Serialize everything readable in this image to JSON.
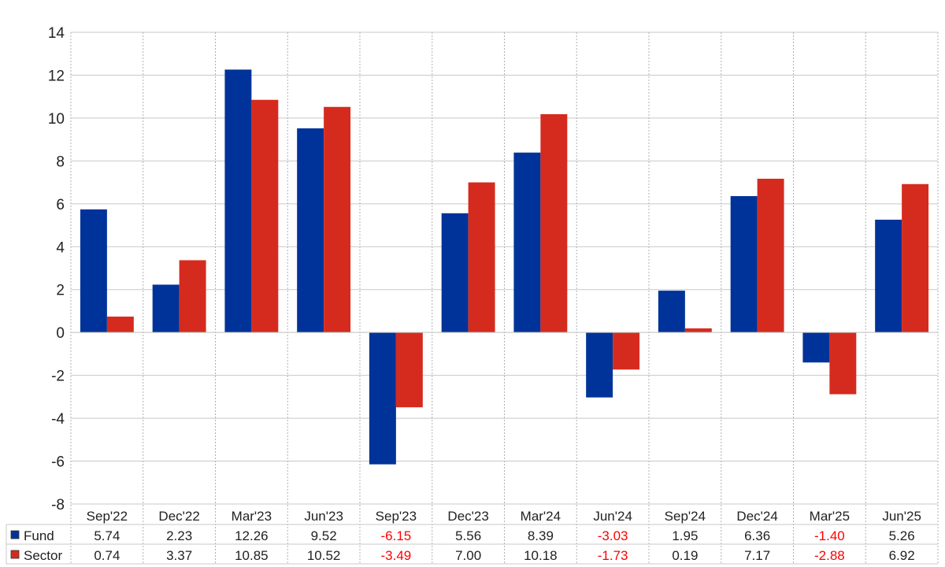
{
  "chart_data": {
    "type": "bar",
    "title": "",
    "xlabel": "",
    "ylabel": "",
    "ylim": [
      -8,
      14
    ],
    "y_ticks": [
      -8,
      -6,
      -4,
      -2,
      0,
      2,
      4,
      6,
      8,
      10,
      12,
      14
    ],
    "y_tick_labels": [
      "-8",
      "-6",
      "-4",
      "-2",
      "0",
      "2",
      "4",
      "6",
      "8",
      "10",
      "12",
      "14"
    ],
    "grid": true,
    "legend": "table-below",
    "categories": [
      "Sep'22",
      "Dec'22",
      "Mar'23",
      "Jun'23",
      "Sep'23",
      "Dec'23",
      "Mar'24",
      "Jun'24",
      "Sep'24",
      "Dec'24",
      "Mar'25",
      "Jun'25"
    ],
    "series": [
      {
        "name": "Fund",
        "color": "#003399",
        "values": [
          5.74,
          2.23,
          12.26,
          9.52,
          -6.15,
          5.56,
          8.39,
          -3.03,
          1.95,
          6.36,
          -1.4,
          5.26
        ],
        "labels": [
          "5.74",
          "2.23",
          "12.26",
          "9.52",
          "-6.15",
          "5.56",
          "8.39",
          "-3.03",
          "1.95",
          "6.36",
          "-1.40",
          "5.26"
        ]
      },
      {
        "name": "Sector",
        "color": "#d52b1e",
        "values": [
          0.74,
          3.37,
          10.85,
          10.52,
          -3.49,
          7.0,
          10.18,
          -1.73,
          0.19,
          7.17,
          -2.88,
          6.92
        ],
        "labels": [
          "0.74",
          "3.37",
          "10.85",
          "10.52",
          "-3.49",
          "7.00",
          "10.18",
          "-1.73",
          "0.19",
          "7.17",
          "-2.88",
          "6.92"
        ]
      }
    ],
    "negative_label_color": "#ff0000"
  }
}
